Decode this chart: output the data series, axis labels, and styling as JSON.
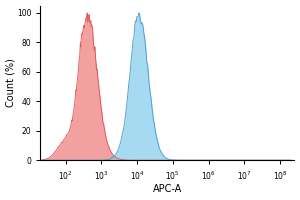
{
  "title": "",
  "xlabel": "APC-A",
  "ylabel": "Count (%)",
  "ylim": [
    0,
    105
  ],
  "ytick_positions": [
    0,
    20,
    40,
    60,
    80,
    100
  ],
  "red_color": "#F08080",
  "red_edge": "#E05050",
  "blue_color": "#87CEEB",
  "blue_edge": "#4499CC",
  "red_peak_log": 2.65,
  "red_std": 0.3,
  "blue_peak_log": 4.05,
  "blue_std": 0.28,
  "background_color": "#FFFFFF",
  "red_alpha": 0.75,
  "blue_alpha": 0.75,
  "noise_seed": 42,
  "figsize": [
    3.0,
    2.0
  ],
  "dpi": 100
}
